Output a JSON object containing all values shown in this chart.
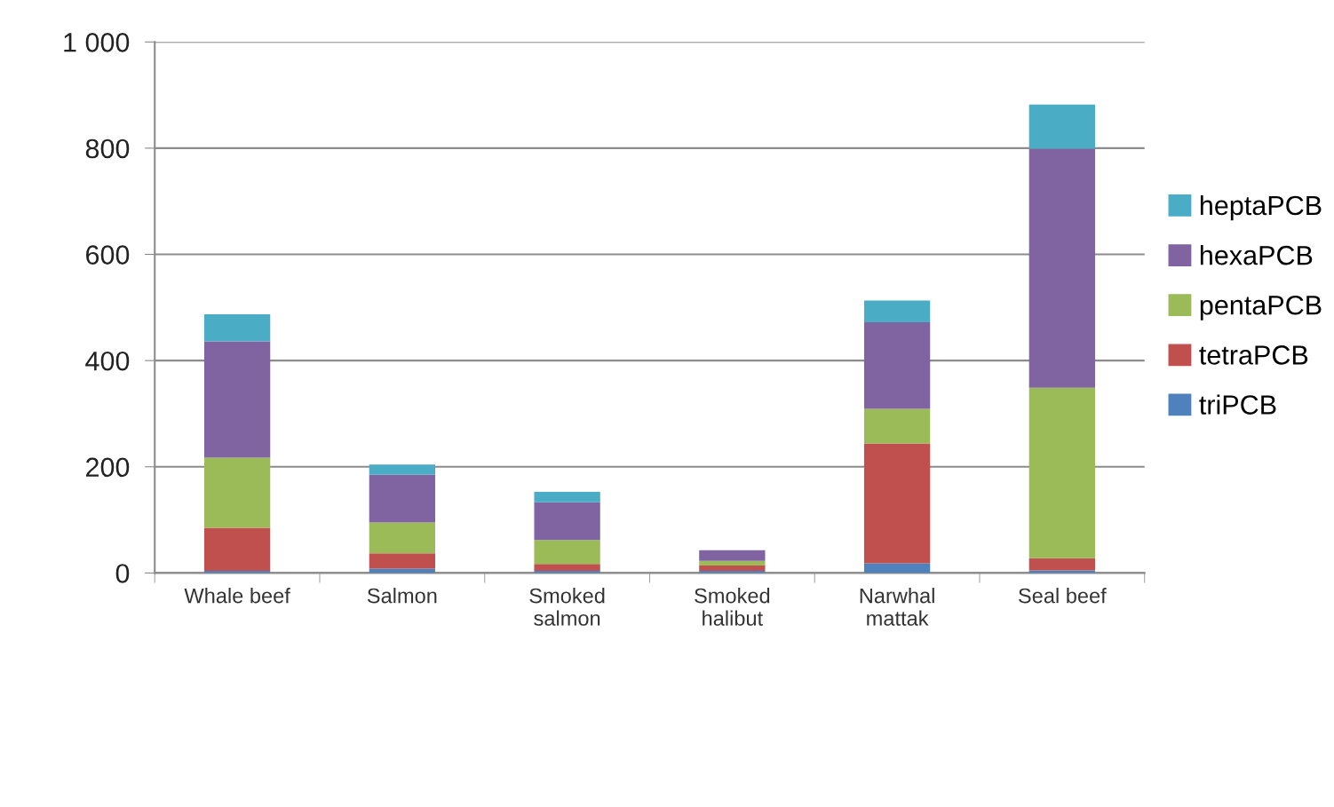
{
  "chart_data": {
    "type": "bar",
    "stacked": true,
    "categories": [
      "Whale beef",
      "Salmon",
      "Smoked\nsalmon",
      "Smoked\nhalibut",
      "Narwhal\nmattak",
      "Seal beef"
    ],
    "series": [
      {
        "name": "triPCB",
        "color": "#4f81bd",
        "values": [
          4,
          8,
          4,
          4,
          18,
          5
        ]
      },
      {
        "name": "tetraPCB",
        "color": "#c0504d",
        "values": [
          81,
          29,
          13,
          10,
          226,
          23
        ]
      },
      {
        "name": "pentaPCB",
        "color": "#9bbb59",
        "values": [
          132,
          58,
          45,
          9,
          65,
          321
        ]
      },
      {
        "name": "hexaPCB",
        "color": "#8064a2",
        "values": [
          219,
          90,
          71,
          20,
          163,
          450
        ]
      },
      {
        "name": "heptaPCB",
        "color": "#4bacc6",
        "values": [
          51,
          19,
          20,
          0,
          41,
          83
        ]
      }
    ],
    "ylim": [
      0,
      1000
    ],
    "yticks": [
      0,
      200,
      400,
      600,
      800,
      {
        "value": 1000,
        "label": "1 000"
      }
    ],
    "grid": "y",
    "legend": "right"
  }
}
